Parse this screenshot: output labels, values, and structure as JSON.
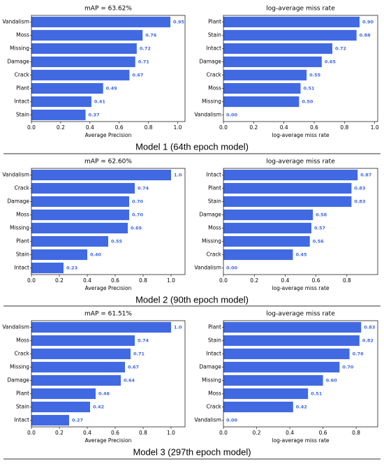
{
  "chart_data": [
    {
      "type": "bar",
      "orientation": "horizontal",
      "title": "mAP = 63.62%",
      "xlabel": "Average Precision",
      "color": "#4169e1",
      "categories": [
        "Vandalism",
        "Moss",
        "Missing",
        "Damage",
        "Crack",
        "Plant",
        "Intact",
        "Stain"
      ],
      "values": [
        0.95,
        0.76,
        0.72,
        0.71,
        0.67,
        0.49,
        0.41,
        0.37
      ],
      "value_labels": [
        "0.95",
        "0.76",
        "0.72",
        "0.71",
        "0.67",
        "0.49",
        "0.41",
        "0.37"
      ],
      "xlim": [
        0,
        1.05
      ],
      "xticks": [
        {
          "value": 0,
          "label": "0.0"
        },
        {
          "value": 0.2,
          "label": "0.2"
        },
        {
          "value": 0.4,
          "label": "0.4"
        },
        {
          "value": 0.6,
          "label": "0.6"
        },
        {
          "value": 0.8,
          "label": "0.8"
        },
        {
          "value": 1,
          "label": "1.0"
        }
      ]
    },
    {
      "type": "bar",
      "orientation": "horizontal",
      "title": "log-average miss rate",
      "xlabel": "log-average miss rate",
      "color": "#4169e1",
      "categories": [
        "Plant",
        "Stain",
        "Intact",
        "Damage",
        "Crack",
        "Moss",
        "Missing",
        "Vandalism"
      ],
      "values": [
        0.9,
        0.88,
        0.72,
        0.65,
        0.55,
        0.51,
        0.5,
        0
      ],
      "value_labels": [
        "0.90",
        "0.88",
        "0.72",
        "0.65",
        "0.55",
        "0.51",
        "0.50",
        "0.00"
      ],
      "xlim": [
        0,
        1.02
      ],
      "xticks": [
        {
          "value": 0,
          "label": "0.0"
        },
        {
          "value": 0.2,
          "label": "0.2"
        },
        {
          "value": 0.4,
          "label": "0.4"
        },
        {
          "value": 0.6,
          "label": "0.6"
        },
        {
          "value": 0.8,
          "label": "0.8"
        },
        {
          "value": 1,
          "label": "1.0"
        }
      ]
    },
    {
      "type": "bar",
      "orientation": "horizontal",
      "title": "mAP = 62.60%",
      "xlabel": "Average Precision",
      "color": "#4169e1",
      "categories": [
        "Vandalism",
        "Crack",
        "Damage",
        "Moss",
        "Missing",
        "Plant",
        "Stain",
        "Intact"
      ],
      "values": [
        1.0,
        0.74,
        0.7,
        0.7,
        0.69,
        0.55,
        0.4,
        0.23
      ],
      "value_labels": [
        "1.0",
        "0.74",
        "0.70",
        "0.70",
        "0.69",
        "0.55",
        "0.40",
        "0.23"
      ],
      "xlim": [
        0,
        1.1
      ],
      "xticks": [
        {
          "value": 0,
          "label": "0.0"
        },
        {
          "value": 0.2,
          "label": "0.2"
        },
        {
          "value": 0.4,
          "label": "0.4"
        },
        {
          "value": 0.6,
          "label": "0.6"
        },
        {
          "value": 0.8,
          "label": "0.8"
        },
        {
          "value": 1,
          "label": "1.0"
        }
      ]
    },
    {
      "type": "bar",
      "orientation": "horizontal",
      "title": "log-average miss rate",
      "xlabel": "log-average miss rate",
      "color": "#4169e1",
      "categories": [
        "Intact",
        "Plant",
        "Stain",
        "Damage",
        "Moss",
        "Missing",
        "Crack",
        "Vandalism"
      ],
      "values": [
        0.87,
        0.83,
        0.83,
        0.58,
        0.57,
        0.56,
        0.45,
        0
      ],
      "value_labels": [
        "0.87",
        "0.83",
        "0.83",
        "0.58",
        "0.57",
        "0.56",
        "0.45",
        "0.00"
      ],
      "xlim": [
        0,
        1.0
      ],
      "xticks": [
        {
          "value": 0,
          "label": "0.0"
        },
        {
          "value": 0.2,
          "label": "0.2"
        },
        {
          "value": 0.4,
          "label": "0.4"
        },
        {
          "value": 0.6,
          "label": "0.6"
        },
        {
          "value": 0.8,
          "label": "0.8"
        }
      ]
    },
    {
      "type": "bar",
      "orientation": "horizontal",
      "title": "mAP = 61.51%",
      "xlabel": "Average Precision",
      "color": "#4169e1",
      "categories": [
        "Vandalism",
        "Moss",
        "Crack",
        "Missing",
        "Damage",
        "Plant",
        "Stain",
        "Intact"
      ],
      "values": [
        1.0,
        0.74,
        0.71,
        0.67,
        0.64,
        0.46,
        0.42,
        0.27
      ],
      "value_labels": [
        "1.0",
        "0.74",
        "0.71",
        "0.67",
        "0.64",
        "0.46",
        "0.42",
        "0.27"
      ],
      "xlim": [
        0,
        1.1
      ],
      "xticks": [
        {
          "value": 0,
          "label": "0.0"
        },
        {
          "value": 0.2,
          "label": "0.2"
        },
        {
          "value": 0.4,
          "label": "0.4"
        },
        {
          "value": 0.6,
          "label": "0.6"
        },
        {
          "value": 0.8,
          "label": "0.8"
        },
        {
          "value": 1,
          "label": "1.0"
        }
      ]
    },
    {
      "type": "bar",
      "orientation": "horizontal",
      "title": "log-average miss rate",
      "xlabel": "log-average miss rate",
      "color": "#4169e1",
      "categories": [
        "Plant",
        "Stain",
        "Intact",
        "Damage",
        "Missing",
        "Moss",
        "Crack",
        "Vandalism"
      ],
      "values": [
        0.83,
        0.82,
        0.76,
        0.7,
        0.6,
        0.51,
        0.42,
        0
      ],
      "value_labels": [
        "0.83",
        "0.82",
        "0.76",
        "0.70",
        "0.60",
        "0.51",
        "0.42",
        "0.00"
      ],
      "xlim": [
        0,
        0.93
      ],
      "xticks": [
        {
          "value": 0,
          "label": "0.0"
        },
        {
          "value": 0.2,
          "label": "0.2"
        },
        {
          "value": 0.4,
          "label": "0.4"
        },
        {
          "value": 0.6,
          "label": "0.6"
        },
        {
          "value": 0.8,
          "label": "0.8"
        }
      ]
    }
  ],
  "captions": [
    "Model 1 (64th epoch model)",
    "Model 2 (90th epoch model)",
    "Model 3 (297th epoch model)"
  ]
}
